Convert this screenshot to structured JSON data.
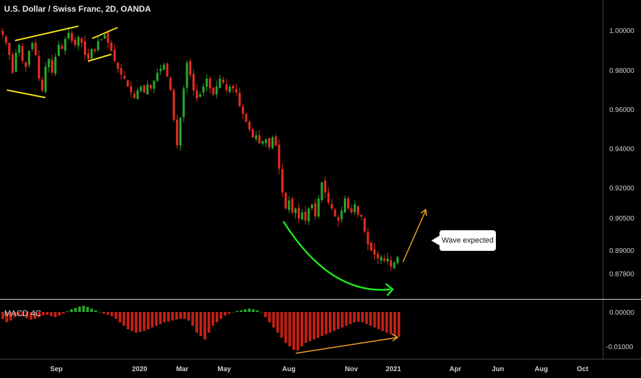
{
  "header": {
    "title": "U.S. Dollar / Swiss Franc, 2D, OANDA"
  },
  "indicator": {
    "title": "MACD 4C"
  },
  "annotation": {
    "callout_text": "Wave expected"
  },
  "colors": {
    "up": "#26a62b",
    "down": "#e52b1e",
    "background": "#000000",
    "trendline_yellow": "#f2e21b",
    "curve_green": "#1ee61e",
    "arrow_orange": "#f5a623"
  },
  "chart_data": [
    {
      "type": "candlestick",
      "title": "U.S. Dollar / Swiss Franc, 2D, OANDA",
      "x_tick_labels": [
        "Sep",
        "2020",
        "Mar",
        "May",
        "Aug",
        "Nov",
        "2021",
        "Apr",
        "Jun",
        "Aug",
        "Oct"
      ],
      "y_tick_labels": [
        "1.00000",
        "0.98000",
        "0.96000",
        "0.94000",
        "0.92000",
        "0.90500",
        "0.89000",
        "0.87800"
      ],
      "y_ticks": [
        1.0,
        0.98,
        0.96,
        0.94,
        0.92,
        0.905,
        0.89,
        0.878
      ],
      "series": [
        {
          "close_path": [
            0.998,
            0.994,
            0.988,
            0.979,
            0.989,
            0.993,
            0.985,
            0.982,
            0.99,
            0.994,
            0.988,
            0.976,
            0.97,
            0.982,
            0.986,
            0.979,
            0.987,
            0.993,
            0.991,
            0.996,
            0.999,
            0.995,
            0.993,
            0.997,
            0.994,
            0.988,
            0.986,
            0.991,
            0.99,
            0.995,
            0.996,
            0.998,
            0.994,
            0.99,
            0.985,
            0.981,
            0.978,
            0.976,
            0.972,
            0.969,
            0.966,
            0.97,
            0.972,
            0.969,
            0.973,
            0.971,
            0.975,
            0.979,
            0.981,
            0.983,
            0.977,
            0.97,
            0.955,
            0.942,
            0.956,
            0.971,
            0.984,
            0.978,
            0.97,
            0.966,
            0.968,
            0.972,
            0.976,
            0.971,
            0.968,
            0.972,
            0.976,
            0.974,
            0.97,
            0.972,
            0.971,
            0.969,
            0.962,
            0.958,
            0.954,
            0.95,
            0.946,
            0.947,
            0.943,
            0.944,
            0.945,
            0.941,
            0.946,
            0.942,
            0.93,
            0.918,
            0.91,
            0.914,
            0.908,
            0.91,
            0.905,
            0.908,
            0.904,
            0.91,
            0.912,
            0.906,
            0.915,
            0.923,
            0.918,
            0.913,
            0.91,
            0.906,
            0.904,
            0.909,
            0.915,
            0.91,
            0.908,
            0.912,
            0.907,
            0.906,
            0.899,
            0.893,
            0.89,
            0.888,
            0.886,
            0.887,
            0.885,
            0.886,
            0.882,
            0.884,
            0.887
          ]
        }
      ],
      "annotations": [
        "Wave expected"
      ]
    },
    {
      "type": "bar",
      "title": "MACD 4C",
      "y_tick_labels": [
        "0.00000",
        "-0.01000"
      ],
      "y_ticks": [
        0.0,
        -0.01
      ],
      "series": [
        {
          "values": [
            -0.002,
            -0.003,
            -0.0025,
            -0.0015,
            -0.001,
            -0.0012,
            -0.0018,
            -0.0022,
            -0.002,
            -0.0015,
            -0.001,
            -0.0008,
            -0.0012,
            -0.0015,
            -0.001,
            -0.0005,
            0.0002,
            0.0008,
            0.0012,
            0.0016,
            0.0018,
            0.0015,
            0.001,
            0.0005,
            0.0,
            -0.0005,
            -0.0008,
            -0.0012,
            -0.002,
            -0.003,
            -0.004,
            -0.005,
            -0.0055,
            -0.006,
            -0.0058,
            -0.0055,
            -0.005,
            -0.0045,
            -0.004,
            -0.0035,
            -0.003,
            -0.0028,
            -0.0025,
            -0.0022,
            -0.002,
            -0.002,
            -0.0025,
            -0.004,
            -0.006,
            -0.007,
            -0.008,
            -0.006,
            -0.004,
            -0.003,
            -0.002,
            -0.001,
            -0.0005,
            0.0,
            0.0003,
            0.0005,
            0.0008,
            0.001,
            0.0008,
            0.0005,
            0.0,
            -0.0015,
            -0.003,
            -0.0045,
            -0.006,
            -0.0075,
            -0.009,
            -0.01,
            -0.011,
            -0.0112,
            -0.01,
            -0.009,
            -0.0085,
            -0.008,
            -0.0075,
            -0.007,
            -0.0065,
            -0.006,
            -0.0055,
            -0.005,
            -0.0045,
            -0.004,
            -0.0035,
            -0.003,
            -0.0028,
            -0.003,
            -0.0035,
            -0.004,
            -0.0045,
            -0.005,
            -0.0055,
            -0.006,
            -0.0065,
            -0.007,
            -0.0072
          ]
        }
      ]
    }
  ]
}
